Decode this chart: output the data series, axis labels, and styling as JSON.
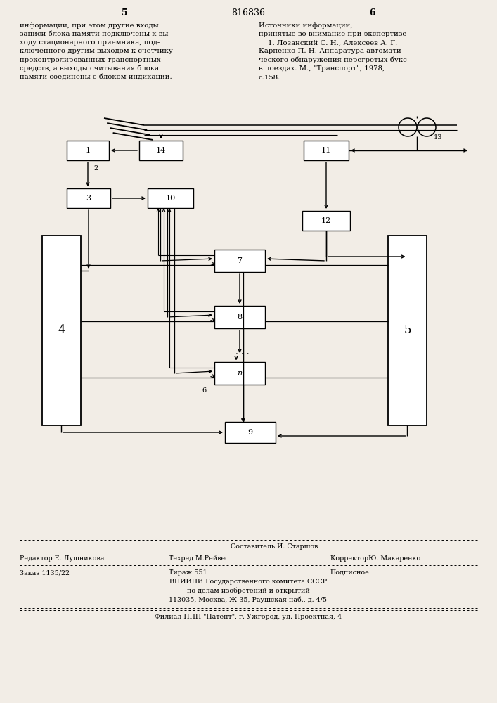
{
  "bg_color": "#f2ede6",
  "page_number_left": "5",
  "page_number_center": "816836",
  "page_number_right": "6",
  "text_left": "информации, при этом другие входы\nзаписи блока памяти подключены к вы-\nходу стационарного приемника, под-\nключенного другим выходом к счетчику\nпроконтролированных транспортных\nсредств, а выходы считывания блока\nпамяти соединены с блоком индикации.",
  "text_right": "Источники информации,\nпринятые во внимание при экспертизе\n    1. Лозанский С. Н., Алексеев А. Г.\nКарпенко П. Н. Аппаратура автомати-\nческого обнаружения перегретых букс\nв поездах. М., \"Транспорт\", 1978,\nс.158.",
  "footer_top1": "Составитель И. Старшов",
  "footer_top2": "Редактор Е. Лушникова    Техред М.Рейвес         КорректорЮ. Макаренко",
  "footer_line2a": "Заказ 1135/22",
  "footer_line2b": "Тираж 551",
  "footer_line2c": "Подписное",
  "footer_line3": "ВНИИПИ Государственного комитета СССР",
  "footer_line4": "по делам изобретений и открытий",
  "footer_line5": "113035, Москва, Ж-35, Раушская наб., д. 4/5",
  "footer_line6": "Филиал ППП \"Патент\", г. Ужгород, ул. Проектная, 4"
}
